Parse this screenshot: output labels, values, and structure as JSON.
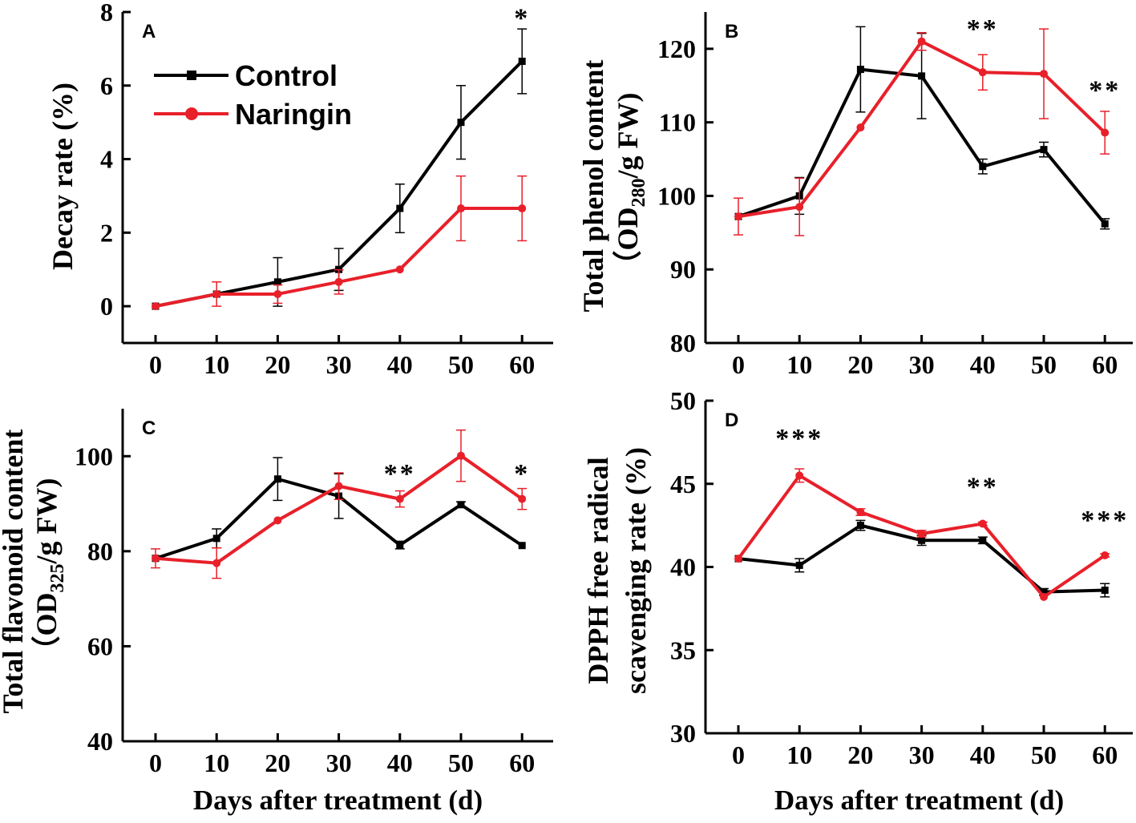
{
  "legend": {
    "entries": [
      {
        "label": "Control",
        "color": "#000000",
        "marker": "square"
      },
      {
        "label": "Naringin",
        "color": "#e8202a",
        "marker": "circle"
      }
    ]
  },
  "chart_data": [
    {
      "panel": "A",
      "type": "line",
      "xlabel": "",
      "ylabel_lines": [
        {
          "text": "Decay rate (%)"
        }
      ],
      "x": [
        0,
        10,
        20,
        30,
        40,
        50,
        60
      ],
      "xticks": [
        "0",
        "10",
        "20",
        "30",
        "40",
        "50",
        "60"
      ],
      "ylim": [
        -1,
        8
      ],
      "yticks": [
        0,
        2,
        4,
        6,
        8
      ],
      "series": [
        {
          "name": "Control",
          "color": "#000000",
          "values": [
            0,
            0.33,
            0.66,
            1.0,
            2.66,
            5.0,
            6.66
          ],
          "errors": [
            0,
            0,
            0.66,
            0.57,
            0.66,
            1.0,
            0.88
          ]
        },
        {
          "name": "Naringin",
          "color": "#e8202a",
          "values": [
            0,
            0.33,
            0.33,
            0.66,
            1.0,
            2.66,
            2.66
          ],
          "errors": [
            0,
            0.33,
            0.25,
            0.33,
            0,
            0.88,
            0.88
          ]
        }
      ],
      "annotations": [
        {
          "x": 60,
          "y": 7.6,
          "text": "*"
        }
      ]
    },
    {
      "panel": "B",
      "type": "line",
      "xlabel": "",
      "ylabel_lines": [
        {
          "text": "Total phenol content"
        },
        {
          "text": "（OD",
          "sub": "280",
          "after": "/g FW)"
        }
      ],
      "x": [
        0,
        10,
        20,
        30,
        40,
        50,
        60
      ],
      "xticks": [
        "0",
        "10",
        "20",
        "30",
        "40",
        "50",
        "60"
      ],
      "ylim": [
        80,
        125
      ],
      "yticks": [
        80,
        90,
        100,
        110,
        120
      ],
      "series": [
        {
          "name": "Control",
          "color": "#000000",
          "values": [
            97.2,
            100.0,
            117.2,
            116.3,
            104.0,
            106.3,
            96.2
          ],
          "errors": [
            0,
            2.5,
            5.8,
            5.8,
            1.0,
            1.0,
            0.7
          ]
        },
        {
          "name": "Naringin",
          "color": "#e8202a",
          "values": [
            97.2,
            98.5,
            109.3,
            121.0,
            116.8,
            116.6,
            108.6
          ],
          "errors": [
            2.5,
            3.9,
            0,
            1.2,
            2.4,
            6.1,
            2.9
          ]
        }
      ],
      "annotations": [
        {
          "x": 40,
          "y": 121.5,
          "text": "**"
        },
        {
          "x": 60,
          "y": 113.2,
          "text": "**"
        }
      ]
    },
    {
      "panel": "C",
      "type": "line",
      "xlabel": "Days after treatment (d)",
      "ylabel_lines": [
        {
          "text": "Total flavonoid content"
        },
        {
          "text": "（OD",
          "sub": "325",
          "after": "/g FW)"
        }
      ],
      "x": [
        0,
        10,
        20,
        30,
        40,
        50,
        60
      ],
      "xticks": [
        "0",
        "10",
        "20",
        "30",
        "40",
        "50",
        "60"
      ],
      "ylim": [
        40,
        110
      ],
      "yticks": [
        40,
        60,
        80,
        100
      ],
      "series": [
        {
          "name": "Control",
          "color": "#000000",
          "values": [
            78.5,
            82.7,
            95.2,
            91.6,
            81.3,
            89.8,
            81.2
          ],
          "errors": [
            0,
            2.0,
            4.5,
            4.7,
            0.8,
            0.6,
            0
          ]
        },
        {
          "name": "Naringin",
          "color": "#e8202a",
          "values": [
            78.5,
            77.5,
            86.5,
            93.7,
            91.0,
            100.1,
            91.0
          ],
          "errors": [
            2.0,
            3.2,
            0,
            2.8,
            1.7,
            5.4,
            2.2
          ]
        }
      ],
      "annotations": [
        {
          "x": 40,
          "y": 94.5,
          "text": "**"
        },
        {
          "x": 60,
          "y": 94.5,
          "text": "*"
        }
      ]
    },
    {
      "panel": "D",
      "type": "line",
      "xlabel": "Days after treatment (d)",
      "ylabel_lines": [
        {
          "text": "DPPH free radical"
        },
        {
          "text": "scavenging rate (%)"
        }
      ],
      "x": [
        0,
        10,
        20,
        30,
        40,
        50,
        60
      ],
      "xticks": [
        "0",
        "10",
        "20",
        "30",
        "40",
        "50",
        "60"
      ],
      "ylim": [
        30,
        50
      ],
      "yticks": [
        30,
        35,
        40,
        45,
        50
      ],
      "series": [
        {
          "name": "Control",
          "color": "#000000",
          "values": [
            40.5,
            40.1,
            42.5,
            41.6,
            41.6,
            38.5,
            38.6
          ],
          "errors": [
            0,
            0.4,
            0.3,
            0.3,
            0.2,
            0.2,
            0.4
          ]
        },
        {
          "name": "Naringin",
          "color": "#e8202a",
          "values": [
            40.5,
            45.5,
            43.3,
            42.0,
            42.6,
            38.2,
            40.7
          ],
          "errors": [
            0,
            0.4,
            0.2,
            0.2,
            0.1,
            0,
            0.1
          ]
        }
      ],
      "annotations": [
        {
          "x": 10,
          "y": 47.2,
          "text": "***"
        },
        {
          "x": 40,
          "y": 44.3,
          "text": "**"
        },
        {
          "x": 60,
          "y": 42.3,
          "text": "***"
        }
      ]
    }
  ]
}
